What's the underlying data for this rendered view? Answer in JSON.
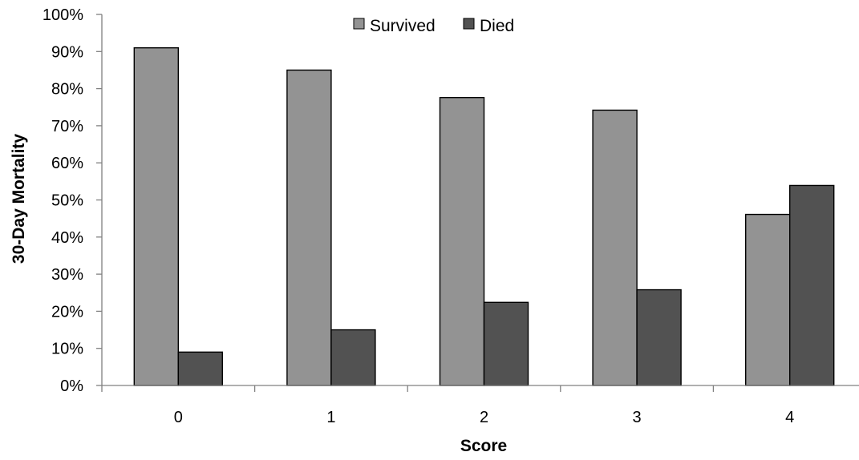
{
  "chart_data": {
    "type": "bar",
    "title": "",
    "xlabel": "Score",
    "ylabel": "30-Day Mortality",
    "categories": [
      "0",
      "1",
      "2",
      "3",
      "4"
    ],
    "series": [
      {
        "name": "Survived",
        "color": "#939393",
        "values": [
          91,
          85,
          77.6,
          74.2,
          46.1
        ]
      },
      {
        "name": "Died",
        "color": "#525252",
        "values": [
          9,
          15,
          22.4,
          25.8,
          53.9
        ]
      }
    ],
    "ylim": [
      0,
      100
    ],
    "y_ticks": [
      0,
      10,
      20,
      30,
      40,
      50,
      60,
      70,
      80,
      90,
      100
    ],
    "y_tick_labels": [
      "0%",
      "10%",
      "20%",
      "30%",
      "40%",
      "50%",
      "60%",
      "70%",
      "80%",
      "90%",
      "100%"
    ],
    "grid": false,
    "legend_position": "top-center"
  }
}
